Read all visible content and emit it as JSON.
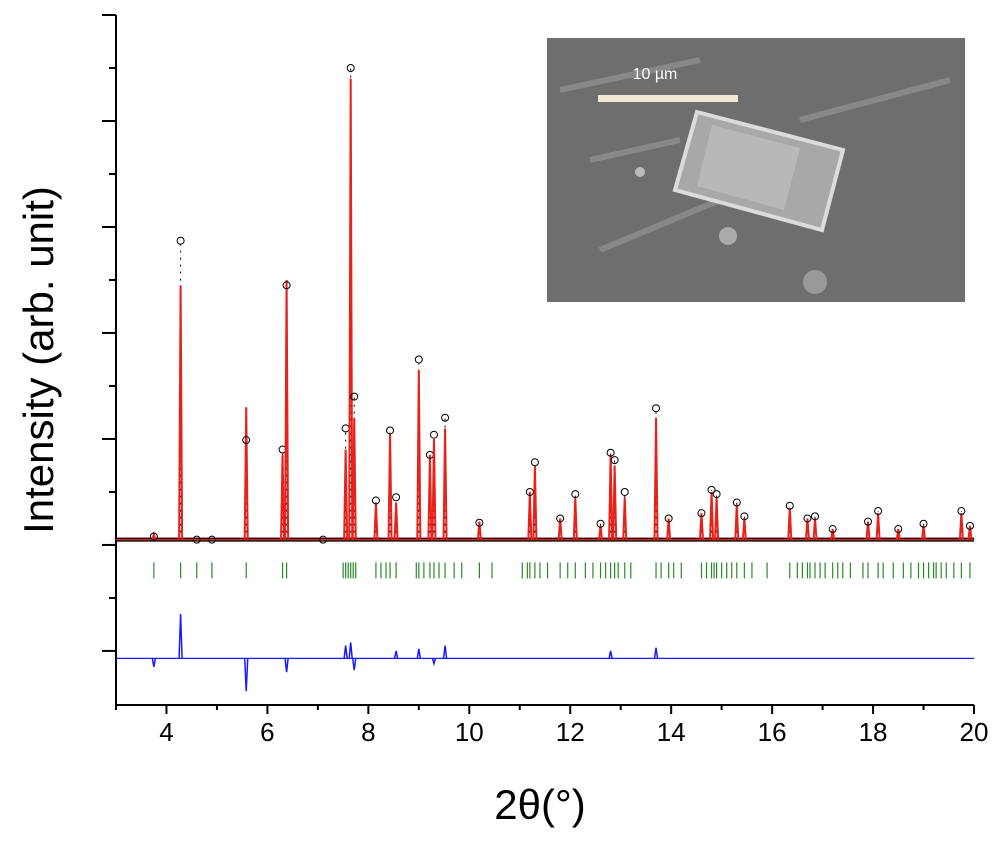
{
  "chart_data": {
    "type": "line",
    "x_label": "2θ(°)",
    "y_label": "Intensity (arb. unit)",
    "xlim": [
      3,
      20
    ],
    "ylim": [
      -151,
      500
    ],
    "xticks": [
      4,
      6,
      8,
      10,
      12,
      14,
      16,
      18,
      20
    ],
    "x_minor_ticks": [
      3,
      5,
      7,
      9,
      11,
      13,
      15,
      17,
      19
    ],
    "yticks": [
      -100,
      0,
      100,
      200,
      300,
      400,
      500
    ],
    "y_minor_ticks": [
      -50,
      50,
      150,
      250,
      350,
      450
    ],
    "background": 5,
    "x": [
      3.75,
      4.28,
      4.6,
      4.9,
      5.58,
      6.3,
      6.38,
      7.1,
      7.55,
      7.65,
      7.72,
      8.15,
      8.43,
      8.55,
      9.0,
      9.22,
      9.3,
      9.52,
      10.2,
      11.2,
      11.3,
      11.8,
      12.1,
      12.6,
      12.8,
      12.88,
      13.08,
      13.7,
      13.95,
      14.6,
      14.8,
      14.9,
      15.3,
      15.45,
      16.35,
      16.7,
      16.85,
      17.2,
      17.9,
      18.1,
      18.5,
      19.0,
      19.75,
      19.92
    ],
    "observed": {
      "color": "#000000",
      "values": [
        8,
        287,
        5,
        5,
        99,
        90,
        245,
        5,
        110,
        450,
        140,
        42,
        108,
        45,
        175,
        85,
        104,
        120,
        21,
        50,
        78,
        25,
        48,
        20,
        87,
        80,
        50,
        129,
        25,
        30,
        52,
        48,
        40,
        27,
        37,
        25,
        27,
        15,
        22,
        32,
        15,
        20,
        32,
        18
      ]
    },
    "calculated": {
      "color": "#e8211a",
      "values": [
        10,
        245,
        5,
        5,
        130,
        85,
        250,
        5,
        90,
        440,
        120,
        40,
        105,
        40,
        165,
        85,
        100,
        110,
        22,
        50,
        75,
        25,
        45,
        18,
        85,
        75,
        45,
        120,
        25,
        30,
        50,
        45,
        38,
        25,
        35,
        25,
        25,
        15,
        22,
        30,
        15,
        18,
        30,
        18
      ]
    },
    "bragg": {
      "color": "#2a8a2a",
      "level": -24,
      "x": [
        3.75,
        4.28,
        4.6,
        4.9,
        5.58,
        6.3,
        6.38,
        7.5,
        7.55,
        7.6,
        7.65,
        7.7,
        7.75,
        8.15,
        8.25,
        8.35,
        8.43,
        8.55,
        8.95,
        9.0,
        9.1,
        9.22,
        9.3,
        9.4,
        9.52,
        9.7,
        9.85,
        10.2,
        10.45,
        11.05,
        11.15,
        11.2,
        11.3,
        11.4,
        11.55,
        11.8,
        11.95,
        12.1,
        12.3,
        12.45,
        12.6,
        12.7,
        12.8,
        12.88,
        12.95,
        13.08,
        13.2,
        13.7,
        13.8,
        13.95,
        14.05,
        14.2,
        14.6,
        14.7,
        14.8,
        14.85,
        14.9,
        15.0,
        15.1,
        15.2,
        15.3,
        15.45,
        15.6,
        15.9,
        16.35,
        16.5,
        16.6,
        16.7,
        16.75,
        16.85,
        16.95,
        17.05,
        17.2,
        17.3,
        17.4,
        17.55,
        17.8,
        17.9,
        18.1,
        18.2,
        18.4,
        18.6,
        18.75,
        18.9,
        19.0,
        19.1,
        19.2,
        19.25,
        19.35,
        19.45,
        19.6,
        19.75,
        19.92
      ]
    },
    "difference": {
      "color": "#1a1aff",
      "baseline": -107,
      "x": [
        3.75,
        4.28,
        5.58,
        6.38,
        7.55,
        7.65,
        7.72,
        8.55,
        9.0,
        9.3,
        9.52,
        12.8,
        13.7
      ],
      "values": [
        -115,
        -65,
        -138,
        -120,
        -95,
        -92,
        -118,
        -100,
        -98,
        -112,
        -95,
        -100,
        -97
      ]
    },
    "inset": {
      "scale_bar_label": "10 µm"
    }
  }
}
